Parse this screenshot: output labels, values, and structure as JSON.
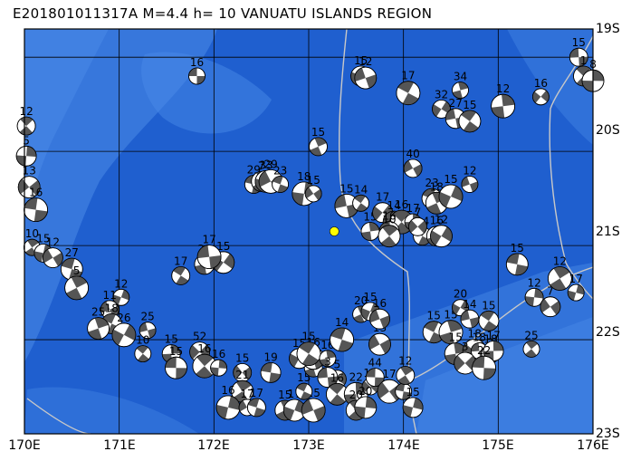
{
  "title": "E201801011317A M=4.4 h= 10 VANUATU ISLANDS REGION",
  "lon_axis": [
    "170E",
    "171E",
    "172E",
    "173E",
    "174E",
    "175E",
    "176E"
  ],
  "lat_axis": [
    "19S",
    "20S",
    "21S",
    "22S",
    "23S"
  ],
  "colors": {
    "ocean_deep": "#1f5fcf",
    "ocean_shallow": "#4a8be8",
    "grid": "#000000",
    "plate_boundary": "#c8c8c8",
    "beachball_dark": "#555555",
    "beachball_light": "#ffffff",
    "event_marker": "#ffff00"
  },
  "event": {
    "lon": 173.27,
    "lat": -20.85
  },
  "mechanisms": [
    {
      "lon": 171.82,
      "lat": -19.2,
      "label": "16"
    },
    {
      "lon": 170.02,
      "lat": -19.73,
      "label": "12"
    },
    {
      "lon": 170.02,
      "lat": -20.05,
      "label": "5"
    },
    {
      "lon": 170.05,
      "lat": -20.38,
      "label": "13"
    },
    {
      "lon": 170.12,
      "lat": -20.62,
      "label": "16"
    },
    {
      "lon": 170.08,
      "lat": -21.02,
      "label": "10"
    },
    {
      "lon": 170.2,
      "lat": -21.08,
      "label": "15"
    },
    {
      "lon": 170.3,
      "lat": -21.13,
      "label": "12"
    },
    {
      "lon": 170.5,
      "lat": -21.25,
      "label": "27"
    },
    {
      "lon": 170.55,
      "lat": -21.45,
      "label": "5"
    },
    {
      "lon": 171.02,
      "lat": -21.55,
      "label": "12"
    },
    {
      "lon": 170.9,
      "lat": -21.68,
      "label": "11"
    },
    {
      "lon": 170.92,
      "lat": -21.83,
      "label": "18"
    },
    {
      "lon": 170.78,
      "lat": -21.88,
      "label": "25"
    },
    {
      "lon": 171.05,
      "lat": -21.95,
      "label": "26"
    },
    {
      "lon": 171.3,
      "lat": -21.9,
      "label": "25"
    },
    {
      "lon": 171.65,
      "lat": -21.32,
      "label": "17"
    },
    {
      "lon": 171.9,
      "lat": -21.2,
      "label": "21"
    },
    {
      "lon": 172.1,
      "lat": -21.18,
      "label": "15"
    },
    {
      "lon": 171.95,
      "lat": -21.12,
      "label": "17"
    },
    {
      "lon": 171.25,
      "lat": -22.15,
      "label": "10"
    },
    {
      "lon": 171.55,
      "lat": -22.15,
      "label": "15"
    },
    {
      "lon": 171.85,
      "lat": -22.13,
      "label": "52"
    },
    {
      "lon": 171.6,
      "lat": -22.3,
      "label": "15"
    },
    {
      "lon": 171.9,
      "lat": -22.28,
      "label": "16"
    },
    {
      "lon": 172.05,
      "lat": -22.3,
      "label": "16"
    },
    {
      "lon": 172.3,
      "lat": -22.35,
      "label": "15"
    },
    {
      "lon": 172.6,
      "lat": -22.35,
      "label": "19"
    },
    {
      "lon": 172.3,
      "lat": -22.55,
      "label": "21"
    },
    {
      "lon": 172.15,
      "lat": -22.72,
      "label": "16"
    },
    {
      "lon": 172.35,
      "lat": -22.72,
      "label": "17"
    },
    {
      "lon": 172.45,
      "lat": -22.72,
      "label": "17"
    },
    {
      "lon": 172.75,
      "lat": -22.75,
      "label": "15"
    },
    {
      "lon": 172.85,
      "lat": -22.75,
      "label": "17"
    },
    {
      "lon": 173.05,
      "lat": -22.75,
      "label": "15"
    },
    {
      "lon": 172.95,
      "lat": -22.55,
      "label": "15"
    },
    {
      "lon": 173.05,
      "lat": -22.3,
      "label": "15"
    },
    {
      "lon": 172.9,
      "lat": -22.2,
      "label": "15"
    },
    {
      "lon": 173.05,
      "lat": -22.2,
      "label": "16"
    },
    {
      "lon": 173.0,
      "lat": -22.15,
      "label": "15"
    },
    {
      "lon": 173.2,
      "lat": -22.2,
      "label": "16"
    },
    {
      "lon": 173.3,
      "lat": -22.42,
      "label": "5"
    },
    {
      "lon": 173.2,
      "lat": -22.4,
      "label": "3"
    },
    {
      "lon": 173.3,
      "lat": -22.58,
      "label": "16"
    },
    {
      "lon": 173.5,
      "lat": -22.58,
      "label": "22"
    },
    {
      "lon": 173.65,
      "lat": -22.5,
      "label": "14"
    },
    {
      "lon": 173.7,
      "lat": -22.4,
      "label": "44"
    },
    {
      "lon": 173.5,
      "lat": -22.75,
      "label": "20"
    },
    {
      "lon": 173.6,
      "lat": -22.72,
      "label": "20"
    },
    {
      "lon": 173.85,
      "lat": -22.55,
      "label": "17"
    },
    {
      "lon": 174.0,
      "lat": -22.55,
      "label": "19"
    },
    {
      "lon": 174.02,
      "lat": -22.38,
      "label": "12"
    },
    {
      "lon": 174.1,
      "lat": -22.72,
      "label": "15"
    },
    {
      "lon": 173.75,
      "lat": -22.05,
      "label": "13"
    },
    {
      "lon": 173.35,
      "lat": -22.0,
      "label": "14"
    },
    {
      "lon": 173.55,
      "lat": -21.73,
      "label": "20"
    },
    {
      "lon": 173.65,
      "lat": -21.7,
      "label": "15"
    },
    {
      "lon": 173.75,
      "lat": -21.78,
      "label": "16"
    },
    {
      "lon": 174.32,
      "lat": -21.92,
      "label": "15"
    },
    {
      "lon": 174.5,
      "lat": -21.92,
      "label": "15"
    },
    {
      "lon": 174.6,
      "lat": -21.66,
      "label": "20"
    },
    {
      "lon": 174.7,
      "lat": -21.78,
      "label": "14"
    },
    {
      "lon": 174.9,
      "lat": -21.8,
      "label": "15"
    },
    {
      "lon": 174.55,
      "lat": -22.15,
      "label": "15"
    },
    {
      "lon": 174.75,
      "lat": -22.12,
      "label": "18"
    },
    {
      "lon": 174.8,
      "lat": -22.12,
      "label": "18"
    },
    {
      "lon": 174.92,
      "lat": -22.15,
      "label": "18"
    },
    {
      "lon": 174.95,
      "lat": -22.12,
      "label": "17"
    },
    {
      "lon": 174.65,
      "lat": -22.25,
      "label": "3"
    },
    {
      "lon": 174.85,
      "lat": -22.3,
      "label": "22"
    },
    {
      "lon": 175.35,
      "lat": -22.1,
      "label": "25"
    },
    {
      "lon": 175.38,
      "lat": -21.55,
      "label": "12"
    },
    {
      "lon": 175.55,
      "lat": -21.65,
      "label": "7"
    },
    {
      "lon": 175.2,
      "lat": -21.2,
      "label": "15"
    },
    {
      "lon": 175.65,
      "lat": -21.35,
      "label": "12"
    },
    {
      "lon": 175.82,
      "lat": -21.5,
      "label": "17"
    },
    {
      "lon": 174.1,
      "lat": -20.18,
      "label": "40"
    },
    {
      "lon": 174.3,
      "lat": -20.5,
      "label": "23"
    },
    {
      "lon": 174.35,
      "lat": -20.55,
      "label": "18"
    },
    {
      "lon": 174.5,
      "lat": -20.48,
      "label": "15"
    },
    {
      "lon": 174.7,
      "lat": -20.35,
      "label": "12"
    },
    {
      "lon": 174.2,
      "lat": -20.9,
      "label": "34"
    },
    {
      "lon": 174.35,
      "lat": -20.9,
      "label": "16"
    },
    {
      "lon": 174.4,
      "lat": -20.9,
      "label": "12"
    },
    {
      "lon": 173.4,
      "lat": -20.58,
      "label": "15"
    },
    {
      "lon": 173.55,
      "lat": -20.55,
      "label": "14"
    },
    {
      "lon": 173.65,
      "lat": -20.85,
      "label": "15"
    },
    {
      "lon": 173.78,
      "lat": -20.65,
      "label": "17"
    },
    {
      "lon": 173.9,
      "lat": -20.75,
      "label": "14"
    },
    {
      "lon": 173.98,
      "lat": -20.75,
      "label": "16"
    },
    {
      "lon": 174.1,
      "lat": -20.75,
      "label": "17"
    },
    {
      "lon": 174.15,
      "lat": -20.8,
      "label": "7"
    },
    {
      "lon": 173.85,
      "lat": -20.85,
      "label": "16"
    },
    {
      "lon": 173.85,
      "lat": -20.9,
      "label": "10"
    },
    {
      "lon": 172.95,
      "lat": -20.45,
      "label": "18"
    },
    {
      "lon": 173.05,
      "lat": -20.45,
      "label": "15"
    },
    {
      "lon": 172.42,
      "lat": -20.35,
      "label": "29"
    },
    {
      "lon": 172.5,
      "lat": -20.32,
      "label": "7"
    },
    {
      "lon": 172.55,
      "lat": -20.32,
      "label": "33"
    },
    {
      "lon": 172.6,
      "lat": -20.32,
      "label": "29"
    },
    {
      "lon": 172.7,
      "lat": -20.35,
      "label": "23"
    },
    {
      "lon": 173.1,
      "lat": -19.95,
      "label": "15"
    },
    {
      "lon": 173.55,
      "lat": -19.2,
      "label": "15"
    },
    {
      "lon": 173.6,
      "lat": -19.22,
      "label": "12"
    },
    {
      "lon": 174.05,
      "lat": -19.38,
      "label": "17"
    },
    {
      "lon": 174.6,
      "lat": -19.35,
      "label": "34"
    },
    {
      "lon": 174.4,
      "lat": -19.55,
      "label": "32"
    },
    {
      "lon": 174.55,
      "lat": -19.65,
      "label": "27"
    },
    {
      "lon": 174.7,
      "lat": -19.68,
      "label": "15"
    },
    {
      "lon": 175.05,
      "lat": -19.52,
      "label": "12"
    },
    {
      "lon": 175.45,
      "lat": -19.42,
      "label": "16"
    },
    {
      "lon": 175.85,
      "lat": -19.0,
      "label": "15"
    },
    {
      "lon": 175.9,
      "lat": -19.2,
      "label": "1"
    },
    {
      "lon": 176.0,
      "lat": -19.25,
      "label": "8"
    }
  ]
}
